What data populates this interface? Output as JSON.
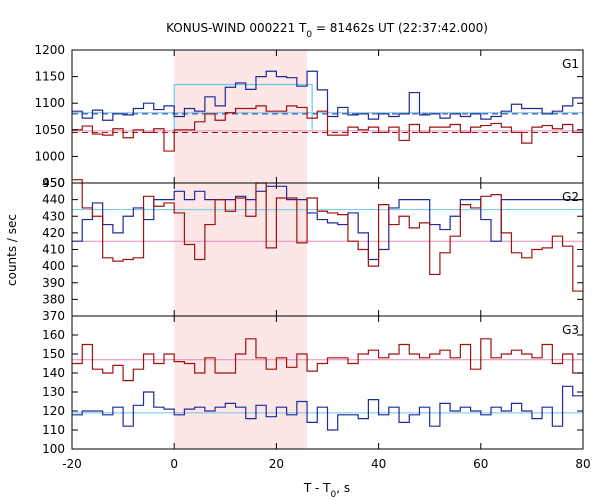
{
  "chart_data": {
    "type": "line",
    "title": "KONUS-WIND 000221 T",
    "title_sub": "0",
    "title_rest": " = 81462s UT (22:37:42.000)",
    "xlabel": "T - T",
    "xlabel_sub": "0",
    "xlabel_rest": ", s",
    "ylabel": "counts / sec",
    "xlim": [
      -20,
      80
    ],
    "xticks": [
      -20,
      0,
      20,
      40,
      60,
      80
    ],
    "highlight": {
      "x0": 0,
      "x1": 26,
      "color": "#fde6e6"
    },
    "colors": {
      "blue": "#1f2a9a",
      "red": "#a01010",
      "pink": "#e68ab8",
      "cyan": "#6ec6e6"
    },
    "panels": [
      {
        "label": "G1",
        "ylim": [
          950,
          1200
        ],
        "yticks": [
          950,
          1000,
          1050,
          1100,
          1150,
          1200
        ],
        "x": [
          -20,
          -18,
          -16,
          -14,
          -12,
          -10,
          -8,
          -6,
          -4,
          -2,
          0,
          2,
          4,
          6,
          8,
          10,
          12,
          14,
          16,
          18,
          20,
          22,
          24,
          26,
          28,
          30,
          32,
          34,
          36,
          38,
          40,
          42,
          44,
          46,
          48,
          50,
          52,
          54,
          56,
          58,
          60,
          62,
          64,
          66,
          68,
          70,
          72,
          74,
          76,
          78,
          80
        ],
        "series": [
          {
            "color": "blue",
            "values": [
              1085,
              1072,
              1087,
              1068,
              1080,
              1078,
              1090,
              1100,
              1088,
              1095,
              1075,
              1090,
              1085,
              1112,
              1095,
              1130,
              1138,
              1126,
              1150,
              1160,
              1150,
              1148,
              1132,
              1160,
              1125,
              1075,
              1092,
              1078,
              1080,
              1070,
              1080,
              1075,
              1080,
              1120,
              1078,
              1080,
              1072,
              1080,
              1075,
              1080,
              1070,
              1075,
              1085,
              1098,
              1090,
              1090,
              1080,
              1085,
              1095,
              1110,
              1110
            ]
          },
          {
            "color": "red",
            "values": [
              1050,
              1057,
              1042,
              1040,
              1052,
              1035,
              1050,
              1045,
              1052,
              1010,
              1050,
              1050,
              1065,
              1080,
              1068,
              1082,
              1090,
              1090,
              1095,
              1085,
              1085,
              1095,
              1092,
              1072,
              1085,
              1040,
              1040,
              1055,
              1050,
              1055,
              1045,
              1055,
              1030,
              1060,
              1045,
              1055,
              1055,
              1060,
              1045,
              1055,
              1058,
              1062,
              1055,
              1045,
              1025,
              1055,
              1058,
              1052,
              1060,
              1045,
              1045
            ]
          }
        ],
        "ref_lines": [
          {
            "y": 1080,
            "color": "blue",
            "style": "dashed"
          },
          {
            "y": 1045,
            "color": "red",
            "style": "dashed"
          },
          {
            "y": 1082,
            "color": "cyan",
            "style": "solid"
          },
          {
            "y": 1048,
            "color": "pink",
            "style": "solid"
          }
        ],
        "step_box": {
          "x0": 0,
          "x1": 27,
          "y_top": 1135,
          "y_base": 1050,
          "color": "cyan"
        }
      },
      {
        "label": "G2",
        "ylim": [
          370,
          450
        ],
        "yticks": [
          370,
          380,
          390,
          400,
          410,
          420,
          430,
          440,
          450
        ],
        "x": [
          -20,
          -18,
          -16,
          -14,
          -12,
          -10,
          -8,
          -6,
          -4,
          -2,
          0,
          2,
          4,
          6,
          8,
          10,
          12,
          14,
          16,
          18,
          20,
          22,
          24,
          26,
          28,
          30,
          32,
          34,
          36,
          38,
          40,
          42,
          44,
          46,
          48,
          50,
          52,
          54,
          56,
          58,
          60,
          62,
          64,
          66,
          68,
          70,
          72,
          74,
          76,
          78,
          80
        ],
        "series": [
          {
            "color": "blue",
            "values": [
              415,
              428,
              438,
              425,
              420,
              430,
              435,
              428,
              440,
              440,
              445,
              440,
              445,
              440,
              440,
              440,
              442,
              440,
              445,
              448,
              448,
              440,
              440,
              432,
              428,
              426,
              425,
              432,
              420,
              404,
              410,
              435,
              440,
              440,
              440,
              425,
              422,
              430,
              440,
              440,
              428,
              415,
              440,
              440,
              440,
              440,
              440,
              440,
              440,
              440,
              440
            ]
          },
          {
            "color": "red",
            "values": [
              452,
              435,
              430,
              405,
              403,
              404,
              405,
              442,
              436,
              438,
              432,
              413,
              404,
              425,
              440,
              433,
              441,
              430,
              450,
              411,
              441,
              441,
              414,
              441,
              433,
              432,
              431,
              415,
              410,
              400,
              437,
              425,
              430,
              423,
              426,
              395,
              408,
              418,
              437,
              435,
              442,
              443,
              420,
              408,
              405,
              410,
              411,
              418,
              412,
              385,
              415
            ]
          }
        ],
        "ref_lines": [
          {
            "y": 434,
            "color": "cyan",
            "style": "solid"
          },
          {
            "y": 415,
            "color": "pink",
            "style": "solid"
          }
        ]
      },
      {
        "label": "G3",
        "ylim": [
          100,
          170
        ],
        "yticks": [
          100,
          110,
          120,
          130,
          140,
          150,
          160
        ],
        "x": [
          -20,
          -18,
          -16,
          -14,
          -12,
          -10,
          -8,
          -6,
          -4,
          -2,
          0,
          2,
          4,
          6,
          8,
          10,
          12,
          14,
          16,
          18,
          20,
          22,
          24,
          26,
          28,
          30,
          32,
          34,
          36,
          38,
          40,
          42,
          44,
          46,
          48,
          50,
          52,
          54,
          56,
          58,
          60,
          62,
          64,
          66,
          68,
          70,
          72,
          74,
          76,
          78,
          80
        ],
        "series": [
          {
            "color": "blue",
            "values": [
              118,
              120,
              120,
              118,
              122,
              112,
              123,
              130,
              122,
              121,
              118,
              121,
              122,
              120,
              122,
              124,
              122,
              116,
              123,
              117,
              122,
              118,
              125,
              114,
              122,
              110,
              118,
              118,
              116,
              126,
              118,
              122,
              114,
              118,
              122,
              112,
              124,
              120,
              122,
              120,
              118,
              122,
              120,
              124,
              120,
              116,
              122,
              112,
              133,
              128,
              127
            ]
          },
          {
            "color": "red",
            "values": [
              145,
              155,
              142,
              140,
              144,
              136,
              142,
              150,
              145,
              150,
              146,
              145,
              140,
              148,
              140,
              140,
              150,
              158,
              148,
              142,
              148,
              143,
              150,
              141,
              145,
              148,
              148,
              145,
              150,
              152,
              148,
              150,
              155,
              150,
              148,
              150,
              152,
              148,
              155,
              142,
              158,
              148,
              150,
              152,
              150,
              148,
              155,
              145,
              150,
              140,
              148
            ]
          }
        ],
        "ref_lines": [
          {
            "y": 119,
            "color": "cyan",
            "style": "solid"
          },
          {
            "y": 147,
            "color": "pink",
            "style": "solid"
          }
        ]
      }
    ]
  }
}
